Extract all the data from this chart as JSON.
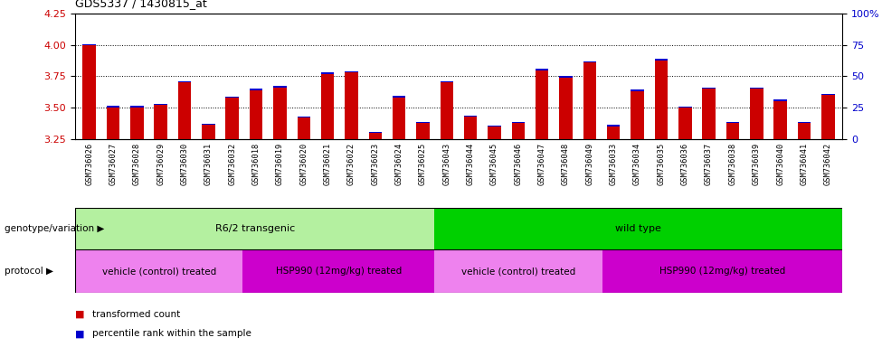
{
  "title": "GDS5337 / 1430815_at",
  "samples": [
    "GSM736026",
    "GSM736027",
    "GSM736028",
    "GSM736029",
    "GSM736030",
    "GSM736031",
    "GSM736032",
    "GSM736018",
    "GSM736019",
    "GSM736020",
    "GSM736021",
    "GSM736022",
    "GSM736023",
    "GSM736024",
    "GSM736025",
    "GSM736043",
    "GSM736044",
    "GSM736045",
    "GSM736046",
    "GSM736047",
    "GSM736048",
    "GSM736049",
    "GSM736033",
    "GSM736034",
    "GSM736035",
    "GSM736036",
    "GSM736037",
    "GSM736038",
    "GSM736039",
    "GSM736040",
    "GSM736041",
    "GSM736042"
  ],
  "red_values": [
    4.0,
    3.5,
    3.5,
    3.52,
    3.7,
    3.36,
    3.58,
    3.64,
    3.66,
    3.42,
    3.77,
    3.78,
    3.3,
    3.58,
    3.38,
    3.7,
    3.43,
    3.35,
    3.38,
    3.8,
    3.74,
    3.86,
    3.35,
    3.63,
    3.88,
    3.5,
    3.65,
    3.38,
    3.65,
    3.55,
    3.38,
    3.6
  ],
  "blue_heights": [
    0.005,
    0.012,
    0.012,
    0.012,
    0.01,
    0.008,
    0.01,
    0.012,
    0.012,
    0.01,
    0.012,
    0.012,
    0.008,
    0.012,
    0.008,
    0.012,
    0.008,
    0.008,
    0.008,
    0.012,
    0.012,
    0.012,
    0.012,
    0.012,
    0.012,
    0.008,
    0.012,
    0.008,
    0.012,
    0.012,
    0.008,
    0.012
  ],
  "ylim": [
    3.25,
    4.25
  ],
  "yticks_left": [
    3.25,
    3.5,
    3.75,
    4.0,
    4.25
  ],
  "right_tick_positions": [
    3.25,
    3.5,
    3.75,
    4.0,
    4.25
  ],
  "right_tick_labels": [
    "0",
    "25",
    "50",
    "75",
    "100%"
  ],
  "ylabel_left_color": "#cc0000",
  "ylabel_right_color": "#0000cc",
  "bar_color_red": "#cc0000",
  "bar_color_blue": "#0000cc",
  "bar_width": 0.55,
  "plot_bg_color": "#ffffff",
  "tick_label_bg": "#c8c8c8",
  "genotype_groups": [
    {
      "label": "R6/2 transgenic",
      "start": 0,
      "end": 14,
      "color": "#b4f0a0"
    },
    {
      "label": "wild type",
      "start": 15,
      "end": 31,
      "color": "#00d000"
    }
  ],
  "protocol_groups": [
    {
      "label": "vehicle (control) treated",
      "start": 0,
      "end": 6,
      "color": "#ee82ee"
    },
    {
      "label": "HSP990 (12mg/kg) treated",
      "start": 7,
      "end": 14,
      "color": "#cc00cc"
    },
    {
      "label": "vehicle (control) treated",
      "start": 15,
      "end": 21,
      "color": "#ee82ee"
    },
    {
      "label": "HSP990 (12mg/kg) treated",
      "start": 22,
      "end": 31,
      "color": "#cc00cc"
    }
  ],
  "legend_items": [
    {
      "label": "transformed count",
      "color": "#cc0000"
    },
    {
      "label": "percentile rank within the sample",
      "color": "#0000cc"
    }
  ]
}
